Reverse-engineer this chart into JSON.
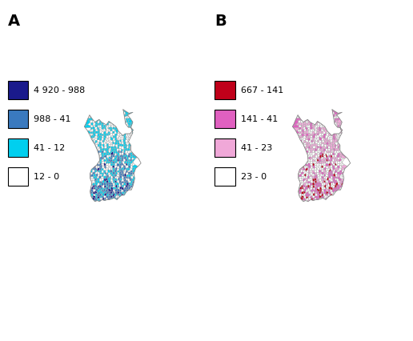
{
  "title_A": "A",
  "title_B": "B",
  "legend_A": {
    "labels": [
      "4 920 - 988",
      "988 - 41",
      "41 - 12",
      "12 - 0"
    ],
    "colors": [
      "#1a1a8c",
      "#3a7abf",
      "#00cfef",
      "#FFFFFF"
    ]
  },
  "legend_B": {
    "labels": [
      "667 - 141",
      "141 - 41",
      "41 - 23",
      "23 - 0"
    ],
    "colors": [
      "#c0001a",
      "#e060c0",
      "#f0a8d8",
      "#FFFFFF"
    ]
  },
  "background_color": "#FFFFFF",
  "edge_color": "#aaaaaa",
  "label_fontsize": 8,
  "title_fontsize": 14,
  "figsize": [
    5.16,
    4.26
  ],
  "dpi": 100
}
